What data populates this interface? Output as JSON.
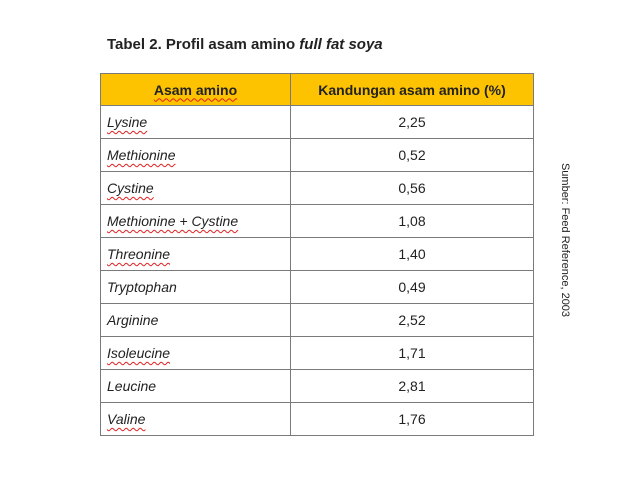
{
  "title": {
    "prefix": "Tabel 2. Profil asam amino",
    "emphasis": "full fat soya"
  },
  "table": {
    "header": [
      "Asam amino",
      "Kandungan asam amino (%)"
    ],
    "rows": [
      [
        "Lysine",
        "2,25"
      ],
      [
        "Methionine",
        "0,52"
      ],
      [
        "Cystine",
        "0,56"
      ],
      [
        "Methionine + Cystine",
        "1,08"
      ],
      [
        "Threonine",
        "1,40"
      ],
      [
        "Tryptophan",
        "0,49"
      ],
      [
        "Arginine",
        "2,52"
      ],
      [
        "Isoleucine",
        "1,71"
      ],
      [
        "Leucine",
        "2,81"
      ],
      [
        "Valine",
        "1,76"
      ]
    ]
  },
  "source": "Sumber: Feed Reference, 2003"
}
